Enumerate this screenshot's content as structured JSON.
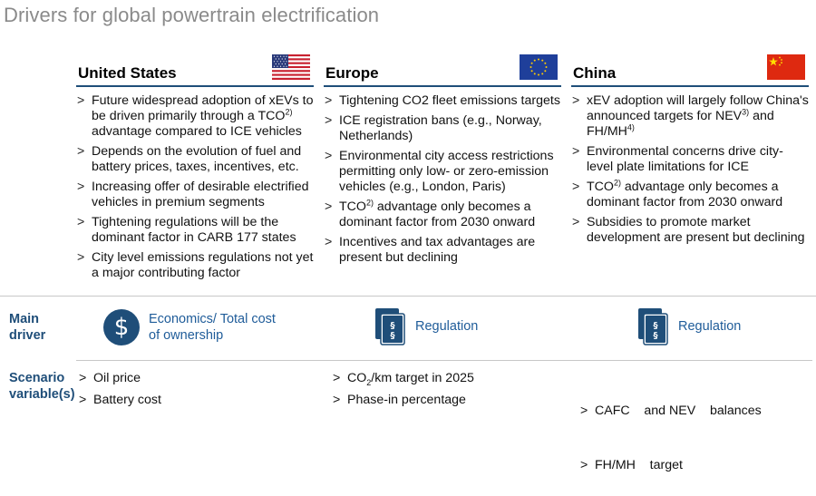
{
  "title": "Drivers for global powertrain electrification",
  "columns": {
    "us": {
      "name": "United States",
      "flag_icon": "us-flag-icon",
      "bullets": [
        {
          "pre": "Future widespread adoption of xEVs to be driven primarily through a TCO",
          "sup": "2)",
          "post": " advantage compared to ICE vehicles"
        },
        {
          "pre": "Depends on the evolution of fuel and battery prices, taxes, incentives, etc.",
          "sup": "",
          "post": ""
        },
        {
          "pre": "Increasing offer of desirable electrified vehicles in premium segments",
          "sup": "",
          "post": ""
        },
        {
          "pre": "Tightening regulations will be the dominant factor in CARB 177 states",
          "sup": "",
          "post": ""
        },
        {
          "pre": "City level emissions regulations not yet a major contributing factor",
          "sup": "",
          "post": ""
        }
      ]
    },
    "eu": {
      "name": "Europe",
      "flag_icon": "eu-flag-icon",
      "bullets": [
        {
          "pre": "Tightening CO2 fleet emissions targets",
          "sup": "",
          "post": ""
        },
        {
          "pre": "ICE registration bans (e.g., Norway, Netherlands)",
          "sup": "",
          "post": ""
        },
        {
          "pre": "Environmental city access restrictions permitting only low- or zero-emission vehicles (e.g., London, Paris)",
          "sup": "",
          "post": ""
        },
        {
          "pre": "TCO",
          "sup": "2)",
          "post": " advantage only becomes a dominant factor from 2030 onward"
        },
        {
          "pre": "Incentives and tax advantages are present but declining",
          "sup": "",
          "post": ""
        }
      ]
    },
    "cn": {
      "name": "China",
      "flag_icon": "china-flag-icon",
      "bullets": [
        {
          "pre": "xEV adoption will largely follow China's announced targets for NEV",
          "sup": "3)",
          "post": " and FH/MH",
          "sup2": "4)"
        },
        {
          "pre": "Environmental concerns drive city-level plate limitations for ICE",
          "sup": "",
          "post": ""
        },
        {
          "pre": "TCO",
          "sup": "2)",
          "post": " advantage only becomes a dominant factor from 2030 onward"
        },
        {
          "pre": "Subsidies to promote market development are present but declining",
          "sup": "",
          "post": ""
        }
      ]
    }
  },
  "main_driver": {
    "label_line1": "Main",
    "label_line2": "driver",
    "us": {
      "text_line1": "Economics/ Total cost",
      "text_line2": "of ownership",
      "icon": "dollar-icon"
    },
    "eu": {
      "text": "Regulation",
      "icon": "law-books-icon"
    },
    "cn": {
      "text": "Regulation",
      "icon": "law-books-icon"
    }
  },
  "scenario": {
    "label_line1": "Scenario",
    "label_line2": "variable(s)",
    "us": [
      "Oil price",
      "Battery cost"
    ],
    "eu": [
      {
        "pre": "CO",
        "sub": "2",
        "post": "/km target in 2025"
      },
      {
        "pre": "Phase-in percentage",
        "sub": "",
        "post": ""
      }
    ],
    "cn": [
      "CAFC    and NEV    balances",
      "FH/MH    target"
    ]
  },
  "colors": {
    "accent": "#1f4e79",
    "title": "#8a8a8a",
    "driver_text": "#1f5c99"
  }
}
